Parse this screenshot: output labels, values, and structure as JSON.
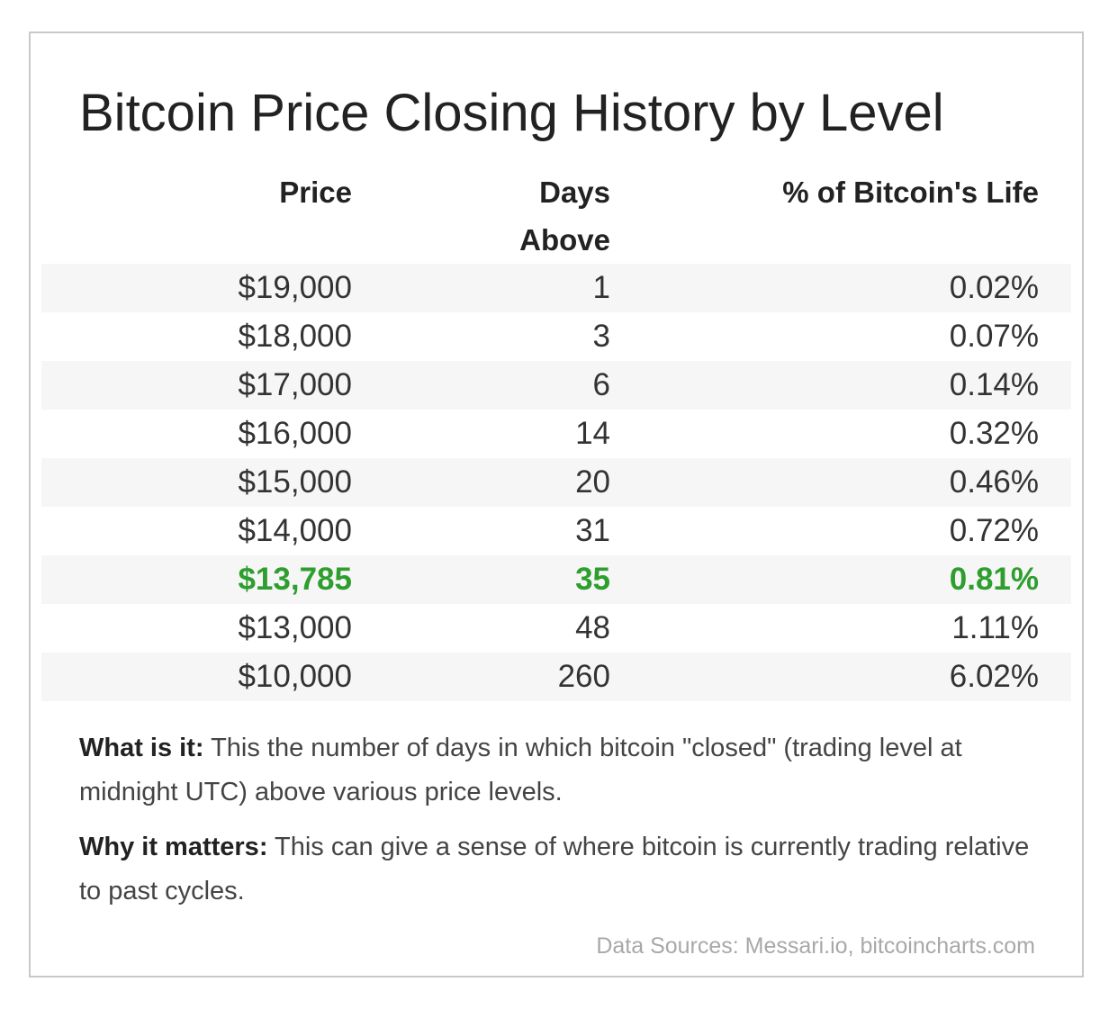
{
  "chart_data": {
    "type": "table",
    "title": "Bitcoin Price Closing History by Level",
    "columns": [
      "Price",
      "Days Above",
      "% of Bitcoin's Life"
    ],
    "header_lines": {
      "price": "Price",
      "days_line1": "Days",
      "days_line2": "Above",
      "pct": "% of Bitcoin's Life"
    },
    "rows": [
      {
        "price": "$19,000",
        "days": "1",
        "pct": "0.02%",
        "highlight": false
      },
      {
        "price": "$18,000",
        "days": "3",
        "pct": "0.07%",
        "highlight": false
      },
      {
        "price": "$17,000",
        "days": "6",
        "pct": "0.14%",
        "highlight": false
      },
      {
        "price": "$16,000",
        "days": "14",
        "pct": "0.32%",
        "highlight": false
      },
      {
        "price": "$15,000",
        "days": "20",
        "pct": "0.46%",
        "highlight": false
      },
      {
        "price": "$14,000",
        "days": "31",
        "pct": "0.72%",
        "highlight": false
      },
      {
        "price": "$13,785",
        "days": "35",
        "pct": "0.81%",
        "highlight": true
      },
      {
        "price": "$13,000",
        "days": "48",
        "pct": "1.11%",
        "highlight": false
      },
      {
        "price": "$10,000",
        "days": "260",
        "pct": "6.02%",
        "highlight": false
      }
    ],
    "highlight_color": "#2e9e2e"
  },
  "notes": {
    "what_label": "What is it:",
    "what_text": " This the number of days in which bitcoin \"closed\" (trading level at midnight UTC) above various price levels.",
    "why_label": "Why it matters:",
    "why_text": " This can give a sense of where bitcoin is currently trading relative to past cycles."
  },
  "source": "Data Sources: Messari.io, bitcoincharts.com"
}
